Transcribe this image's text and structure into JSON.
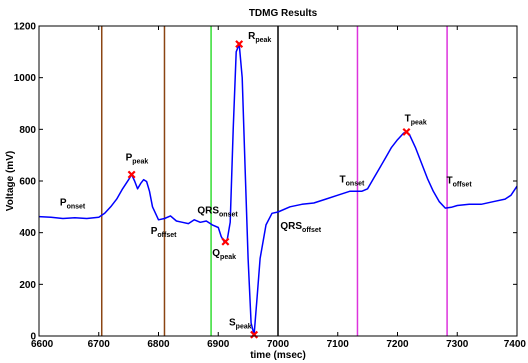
{
  "chart_data": {
    "type": "line",
    "title": "TDMG Results",
    "xlabel": "time (msec)",
    "ylabel": "Voltage (mV)",
    "xlim": [
      6600,
      7400
    ],
    "ylim": [
      0,
      1200
    ],
    "xticks": [
      6600,
      6700,
      6800,
      6900,
      7000,
      7100,
      7200,
      7300,
      7400
    ],
    "yticks": [
      0,
      200,
      400,
      600,
      800,
      1000,
      1200
    ],
    "grid": false,
    "series": [
      {
        "color": "#0000ff",
        "x": [
          6600,
          6620,
          6640,
          6660,
          6680,
          6700,
          6710,
          6720,
          6730,
          6740,
          6750,
          6755,
          6760,
          6765,
          6770,
          6775,
          6780,
          6785,
          6790,
          6800,
          6810,
          6820,
          6830,
          6840,
          6850,
          6860,
          6870,
          6880,
          6890,
          6900,
          6905,
          6910,
          6915,
          6920,
          6925,
          6930,
          6935,
          6940,
          6945,
          6950,
          6955,
          6960,
          6965,
          6970,
          6980,
          6990,
          7000,
          7020,
          7040,
          7060,
          7080,
          7100,
          7120,
          7140,
          7150,
          7160,
          7170,
          7180,
          7190,
          7200,
          7210,
          7215,
          7220,
          7230,
          7240,
          7250,
          7260,
          7270,
          7280,
          7290,
          7300,
          7320,
          7340,
          7360,
          7380,
          7390,
          7400
        ],
        "y": [
          462,
          460,
          455,
          458,
          455,
          460,
          475,
          500,
          530,
          570,
          605,
          625,
          600,
          570,
          590,
          605,
          598,
          560,
          500,
          450,
          455,
          465,
          445,
          440,
          435,
          450,
          440,
          445,
          430,
          420,
          385,
          365,
          372,
          440,
          800,
          1100,
          1130,
          1000,
          650,
          300,
          50,
          5,
          150,
          300,
          430,
          475,
          480,
          500,
          510,
          515,
          530,
          545,
          560,
          560,
          570,
          610,
          650,
          690,
          730,
          760,
          785,
          790,
          780,
          730,
          670,
          610,
          560,
          520,
          495,
          498,
          505,
          510,
          510,
          520,
          530,
          545,
          580
        ]
      }
    ],
    "markers": [
      {
        "name": "P peak",
        "x": 6755,
        "y": 625
      },
      {
        "name": "Q peak",
        "x": 6912,
        "y": 365
      },
      {
        "name": "R peak",
        "x": 6935,
        "y": 1130
      },
      {
        "name": "S peak",
        "x": 6960,
        "y": 5
      },
      {
        "name": "T peak",
        "x": 7215,
        "y": 790
      }
    ],
    "vertical_lines": [
      {
        "x": 6705,
        "color": "#8b4513"
      },
      {
        "x": 6810,
        "color": "#8b4513"
      },
      {
        "x": 6888,
        "color": "#33dd33"
      },
      {
        "x": 7000,
        "color": "#000000"
      },
      {
        "x": 7133,
        "color": "#dd33dd"
      },
      {
        "x": 7283,
        "color": "#dd33dd"
      }
    ],
    "annotations": [
      {
        "main": "P",
        "sub": "onset",
        "x": 6635,
        "y": 505
      },
      {
        "main": "P",
        "sub": "peak",
        "x": 6745,
        "y": 680
      },
      {
        "main": "P",
        "sub": "offset",
        "x": 6787,
        "y": 395
      },
      {
        "main": "QRS",
        "sub": "onset",
        "x": 6865,
        "y": 475
      },
      {
        "main": "Q",
        "sub": "peak",
        "x": 6890,
        "y": 310
      },
      {
        "main": "R",
        "sub": "peak",
        "x": 6950,
        "y": 1150
      },
      {
        "main": "S",
        "sub": "peak",
        "x": 6918,
        "y": 40
      },
      {
        "main": "QRS",
        "sub": "offset",
        "x": 7004,
        "y": 415
      },
      {
        "main": "T",
        "sub": "onset",
        "x": 7103,
        "y": 595
      },
      {
        "main": "T",
        "sub": "peak",
        "x": 7212,
        "y": 830
      },
      {
        "main": "T",
        "sub": "offset",
        "x": 7282,
        "y": 590
      }
    ]
  }
}
